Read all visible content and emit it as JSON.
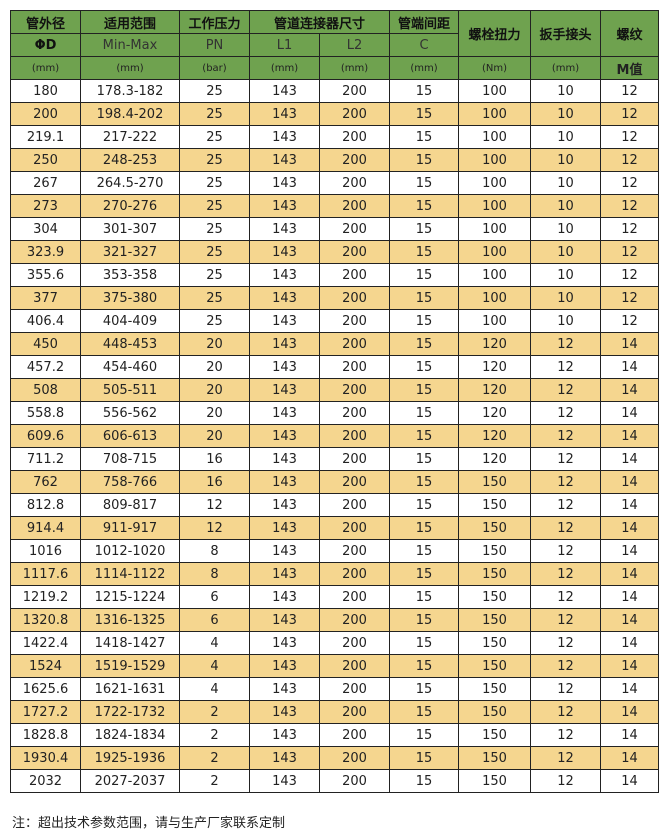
{
  "header": {
    "row1": [
      "管外径",
      "适用范围",
      "工作压力",
      "管道连接器尺寸",
      "管端间距",
      "螺栓扭力",
      "扳手接头",
      "螺纹"
    ],
    "row2": [
      "ΦD",
      "Min-Max",
      "PN",
      "L1",
      "L2",
      "C"
    ],
    "row3": [
      "(mm)",
      "(mm)",
      "(bar)",
      "(mm)",
      "(mm)",
      "(mm)",
      "(Nm)",
      "(mm)",
      "M值"
    ]
  },
  "colors": {
    "header": "#6fa24f",
    "stripe": "#f5d68f"
  },
  "rows": [
    [
      "180",
      "178.3-182",
      "25",
      "143",
      "200",
      "15",
      "100",
      "10",
      "12"
    ],
    [
      "200",
      "198.4-202",
      "25",
      "143",
      "200",
      "15",
      "100",
      "10",
      "12"
    ],
    [
      "219.1",
      "217-222",
      "25",
      "143",
      "200",
      "15",
      "100",
      "10",
      "12"
    ],
    [
      "250",
      "248-253",
      "25",
      "143",
      "200",
      "15",
      "100",
      "10",
      "12"
    ],
    [
      "267",
      "264.5-270",
      "25",
      "143",
      "200",
      "15",
      "100",
      "10",
      "12"
    ],
    [
      "273",
      "270-276",
      "25",
      "143",
      "200",
      "15",
      "100",
      "10",
      "12"
    ],
    [
      "304",
      "301-307",
      "25",
      "143",
      "200",
      "15",
      "100",
      "10",
      "12"
    ],
    [
      "323.9",
      "321-327",
      "25",
      "143",
      "200",
      "15",
      "100",
      "10",
      "12"
    ],
    [
      "355.6",
      "353-358",
      "25",
      "143",
      "200",
      "15",
      "100",
      "10",
      "12"
    ],
    [
      "377",
      "375-380",
      "25",
      "143",
      "200",
      "15",
      "100",
      "10",
      "12"
    ],
    [
      "406.4",
      "404-409",
      "25",
      "143",
      "200",
      "15",
      "100",
      "10",
      "12"
    ],
    [
      "450",
      "448-453",
      "20",
      "143",
      "200",
      "15",
      "120",
      "12",
      "14"
    ],
    [
      "457.2",
      "454-460",
      "20",
      "143",
      "200",
      "15",
      "120",
      "12",
      "14"
    ],
    [
      "508",
      "505-511",
      "20",
      "143",
      "200",
      "15",
      "120",
      "12",
      "14"
    ],
    [
      "558.8",
      "556-562",
      "20",
      "143",
      "200",
      "15",
      "120",
      "12",
      "14"
    ],
    [
      "609.6",
      "606-613",
      "20",
      "143",
      "200",
      "15",
      "120",
      "12",
      "14"
    ],
    [
      "711.2",
      "708-715",
      "16",
      "143",
      "200",
      "15",
      "120",
      "12",
      "14"
    ],
    [
      "762",
      "758-766",
      "16",
      "143",
      "200",
      "15",
      "150",
      "12",
      "14"
    ],
    [
      "812.8",
      "809-817",
      "12",
      "143",
      "200",
      "15",
      "150",
      "12",
      "14"
    ],
    [
      "914.4",
      "911-917",
      "12",
      "143",
      "200",
      "15",
      "150",
      "12",
      "14"
    ],
    [
      "1016",
      "1012-1020",
      "8",
      "143",
      "200",
      "15",
      "150",
      "12",
      "14"
    ],
    [
      "1117.6",
      "1114-1122",
      "8",
      "143",
      "200",
      "15",
      "150",
      "12",
      "14"
    ],
    [
      "1219.2",
      "1215-1224",
      "6",
      "143",
      "200",
      "15",
      "150",
      "12",
      "14"
    ],
    [
      "1320.8",
      "1316-1325",
      "6",
      "143",
      "200",
      "15",
      "150",
      "12",
      "14"
    ],
    [
      "1422.4",
      "1418-1427",
      "4",
      "143",
      "200",
      "15",
      "150",
      "12",
      "14"
    ],
    [
      "1524",
      "1519-1529",
      "4",
      "143",
      "200",
      "15",
      "150",
      "12",
      "14"
    ],
    [
      "1625.6",
      "1621-1631",
      "4",
      "143",
      "200",
      "15",
      "150",
      "12",
      "14"
    ],
    [
      "1727.2",
      "1722-1732",
      "2",
      "143",
      "200",
      "15",
      "150",
      "12",
      "14"
    ],
    [
      "1828.8",
      "1824-1834",
      "2",
      "143",
      "200",
      "15",
      "150",
      "12",
      "14"
    ],
    [
      "1930.4",
      "1925-1936",
      "2",
      "143",
      "200",
      "15",
      "150",
      "12",
      "14"
    ],
    [
      "2032",
      "2027-2037",
      "2",
      "143",
      "200",
      "15",
      "150",
      "12",
      "14"
    ]
  ],
  "note": "注：超出技术参数范围，请与生产厂家联系定制"
}
